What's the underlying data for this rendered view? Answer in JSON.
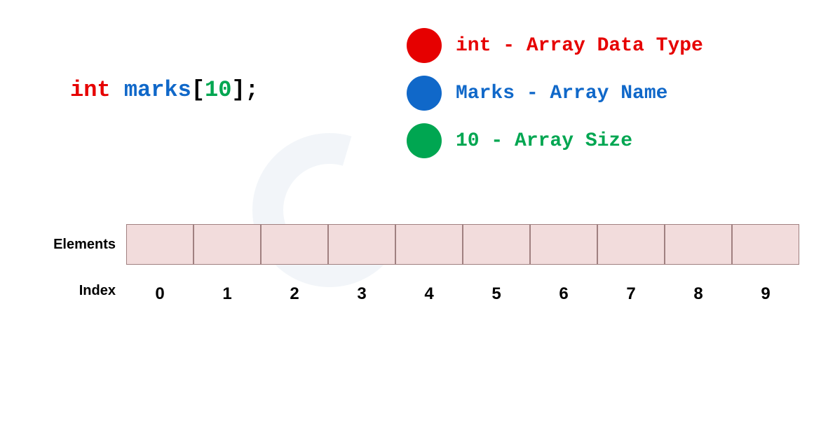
{
  "declaration": {
    "type_keyword": "int",
    "space": " ",
    "name": "marks",
    "bracket_open": "[",
    "size": "10",
    "bracket_close_semi": "];"
  },
  "colors": {
    "type": "#e60000",
    "name": "#1068c9",
    "size": "#00a651",
    "bracket": "#000000",
    "cell_bg": "#f2dcdc",
    "cell_border": "#a08080"
  },
  "legend": [
    {
      "color": "#e60000",
      "text": "int - Array Data Type"
    },
    {
      "color": "#1068c9",
      "text": "Marks - Array Name"
    },
    {
      "color": "#00a651",
      "text": "10 - Array Size"
    }
  ],
  "array": {
    "elements_label": "Elements",
    "index_label": "Index",
    "num_cells": 10,
    "indices": [
      "0",
      "1",
      "2",
      "3",
      "4",
      "5",
      "6",
      "7",
      "8",
      "9"
    ]
  }
}
